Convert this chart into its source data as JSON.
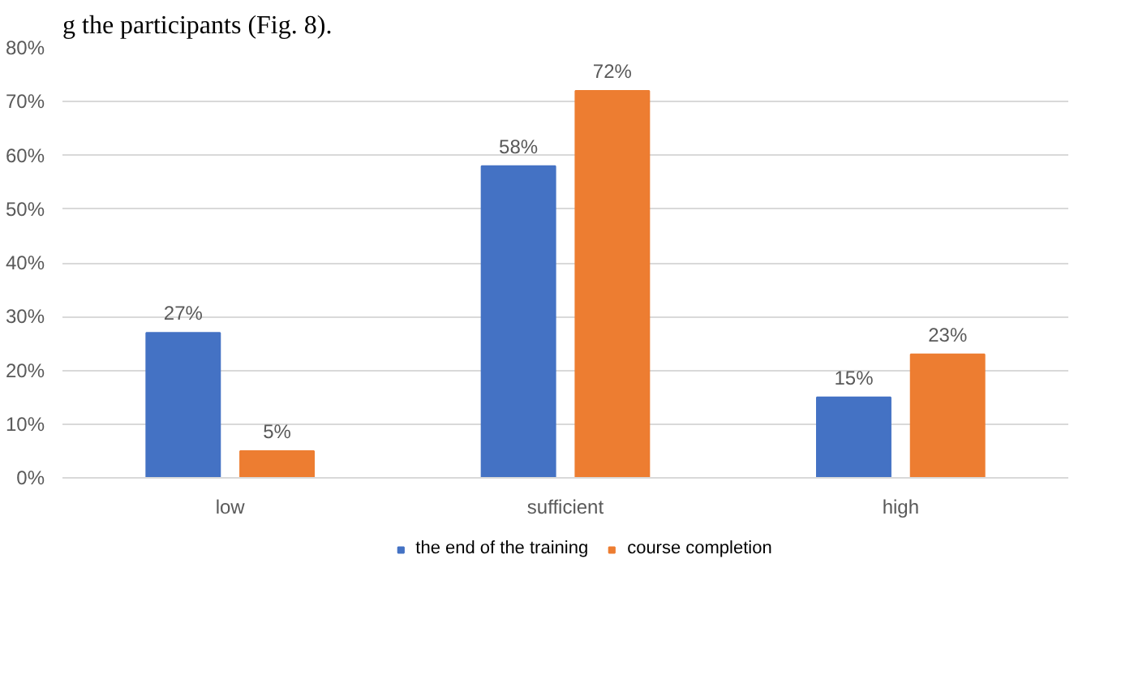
{
  "chart_data": {
    "type": "bar",
    "categories": [
      "low",
      "sufficient",
      "high"
    ],
    "series": [
      {
        "name": "the end of the training",
        "color": "#4472c4",
        "values": [
          27,
          58,
          15
        ],
        "value_labels": [
          "27%",
          "58%",
          "15%"
        ]
      },
      {
        "name": "course completion",
        "color": "#ed7d31",
        "values": [
          5,
          72,
          23
        ],
        "value_labels": [
          "5%",
          "72%",
          "23%"
        ]
      }
    ],
    "ylim": [
      0,
      80
    ],
    "yticks": [
      {
        "value": 0,
        "label": "0%"
      },
      {
        "value": 10,
        "label": "10%"
      },
      {
        "value": 20,
        "label": "20%"
      },
      {
        "value": 30,
        "label": "30%"
      },
      {
        "value": 40,
        "label": "40%"
      },
      {
        "value": 50,
        "label": "50%"
      },
      {
        "value": 60,
        "label": "60%"
      },
      {
        "value": 70,
        "label": "70%"
      },
      {
        "value": 80,
        "label": "80%"
      }
    ],
    "grid": "y",
    "legend": "bottom",
    "annotations": [
      "g the participants (Fig. 8)."
    ]
  }
}
